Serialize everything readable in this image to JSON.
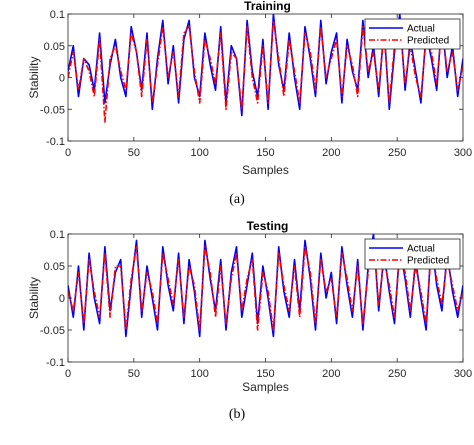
{
  "chart_data": [
    {
      "type": "line",
      "title": "Training",
      "xlabel": "Samples",
      "ylabel": "Stability",
      "xlim": [
        0,
        300
      ],
      "ylim": [
        -0.1,
        0.1
      ],
      "xticks": [
        "0",
        "50",
        "100",
        "150",
        "200",
        "250",
        "300"
      ],
      "yticks": [
        "0.1",
        "0.05",
        "0",
        "-0.05",
        "-0.1"
      ],
      "grid": false,
      "legend_position": "top-right",
      "caption": "(a)",
      "series": [
        {
          "name": "Actual",
          "color": "#0000ff",
          "style": "solid",
          "x": [
            0,
            4,
            8,
            12,
            16,
            20,
            24,
            28,
            32,
            36,
            40,
            44,
            48,
            52,
            56,
            60,
            64,
            68,
            72,
            76,
            80,
            84,
            88,
            92,
            96,
            100,
            104,
            108,
            112,
            116,
            120,
            124,
            128,
            132,
            136,
            140,
            144,
            148,
            152,
            156,
            160,
            164,
            168,
            172,
            176,
            180,
            184,
            188,
            192,
            196,
            200,
            204,
            208,
            212,
            216,
            220,
            224,
            228,
            232,
            236,
            240,
            244,
            248,
            252,
            256,
            260,
            264,
            268,
            272,
            276,
            280,
            284,
            288,
            292,
            296,
            300
          ],
          "y": [
            0.01,
            0.05,
            -0.03,
            0.03,
            0.02,
            -0.02,
            0.07,
            -0.04,
            0.02,
            0.06,
            0.0,
            -0.03,
            0.08,
            0.04,
            -0.02,
            0.07,
            -0.05,
            0.03,
            0.09,
            -0.01,
            0.05,
            -0.04,
            0.06,
            0.09,
            0.0,
            -0.03,
            0.07,
            0.02,
            -0.02,
            0.08,
            -0.04,
            0.05,
            0.03,
            -0.06,
            0.09,
            0.01,
            -0.03,
            0.06,
            -0.05,
            0.1,
            0.02,
            -0.02,
            0.07,
            0.0,
            -0.05,
            0.08,
            0.03,
            -0.03,
            0.09,
            -0.01,
            0.04,
            0.07,
            -0.04,
            0.06,
            0.01,
            -0.02,
            0.09,
            0.0,
            0.05,
            -0.03,
            0.08,
            -0.05,
            0.04,
            0.1,
            -0.02,
            0.06,
            0.01,
            -0.04,
            0.07,
            0.03,
            -0.02,
            0.09,
            0.0,
            0.05,
            -0.03,
            0.03
          ]
        },
        {
          "name": "Predicted",
          "color": "#ff0000",
          "style": "dash-dot",
          "x": [
            0,
            4,
            8,
            12,
            16,
            20,
            24,
            28,
            32,
            36,
            40,
            44,
            48,
            52,
            56,
            60,
            64,
            68,
            72,
            76,
            80,
            84,
            88,
            92,
            96,
            100,
            104,
            108,
            112,
            116,
            120,
            124,
            128,
            132,
            136,
            140,
            144,
            148,
            152,
            156,
            160,
            164,
            168,
            172,
            176,
            180,
            184,
            188,
            192,
            196,
            200,
            204,
            208,
            212,
            216,
            220,
            224,
            228,
            232,
            236,
            240,
            244,
            248,
            252,
            256,
            260,
            264,
            268,
            272,
            276,
            280,
            284,
            288,
            292,
            296,
            300
          ],
          "y": [
            0.0,
            0.04,
            -0.02,
            0.03,
            0.01,
            -0.03,
            0.06,
            -0.07,
            0.03,
            0.05,
            0.01,
            -0.02,
            0.07,
            0.04,
            -0.03,
            0.06,
            -0.04,
            0.02,
            0.08,
            0.0,
            0.04,
            -0.03,
            0.07,
            0.08,
            0.01,
            -0.04,
            0.06,
            0.03,
            -0.01,
            0.07,
            -0.05,
            0.04,
            0.03,
            -0.05,
            0.08,
            0.0,
            -0.04,
            0.05,
            -0.04,
            0.09,
            0.03,
            -0.03,
            0.06,
            0.01,
            -0.04,
            0.07,
            0.04,
            -0.02,
            0.08,
            0.0,
            0.03,
            0.06,
            -0.03,
            0.05,
            0.02,
            -0.03,
            0.08,
            0.01,
            0.04,
            -0.02,
            0.07,
            -0.04,
            0.05,
            0.09,
            -0.01,
            0.05,
            0.0,
            -0.03,
            0.06,
            0.04,
            -0.01,
            0.08,
            0.01,
            0.04,
            -0.02,
            0.02
          ]
        }
      ]
    },
    {
      "type": "line",
      "title": "Testing",
      "xlabel": "Samples",
      "ylabel": "Stability",
      "xlim": [
        0,
        300
      ],
      "ylim": [
        -0.1,
        0.1
      ],
      "xticks": [
        "0",
        "50",
        "100",
        "150",
        "200",
        "250",
        "300"
      ],
      "yticks": [
        "0.1",
        "0.05",
        "0",
        "-0.05",
        "-0.1"
      ],
      "grid": false,
      "legend_position": "top-right",
      "caption": "(b)",
      "series": [
        {
          "name": "Actual",
          "color": "#0000ff",
          "style": "solid",
          "x": [
            0,
            4,
            8,
            12,
            16,
            20,
            24,
            28,
            32,
            36,
            40,
            44,
            48,
            52,
            56,
            60,
            64,
            68,
            72,
            76,
            80,
            84,
            88,
            92,
            96,
            100,
            104,
            108,
            112,
            116,
            120,
            124,
            128,
            132,
            136,
            140,
            144,
            148,
            152,
            156,
            160,
            164,
            168,
            172,
            176,
            180,
            184,
            188,
            192,
            196,
            200,
            204,
            208,
            212,
            216,
            220,
            224,
            228,
            232,
            236,
            240,
            244,
            248,
            252,
            256,
            260,
            264,
            268,
            272,
            276,
            280,
            284,
            288,
            292,
            296,
            300
          ],
          "y": [
            0.02,
            -0.03,
            0.05,
            -0.05,
            0.07,
            0.0,
            -0.04,
            0.08,
            -0.02,
            0.04,
            0.06,
            -0.06,
            0.02,
            0.09,
            -0.03,
            0.05,
            0.0,
            -0.05,
            0.08,
            0.02,
            -0.02,
            0.07,
            -0.04,
            0.06,
            0.01,
            -0.06,
            0.09,
            0.03,
            -0.02,
            0.06,
            -0.05,
            0.04,
            0.08,
            -0.03,
            0.02,
            0.07,
            -0.04,
            0.05,
            0.0,
            -0.06,
            0.08,
            0.01,
            -0.03,
            0.06,
            -0.02,
            0.09,
            0.03,
            -0.05,
            0.07,
            0.0,
            0.04,
            -0.04,
            0.08,
            0.02,
            -0.03,
            0.06,
            -0.05,
            0.05,
            0.1,
            -0.02,
            0.07,
            0.01,
            -0.04,
            0.08,
            0.03,
            -0.03,
            0.06,
            0.0,
            -0.05,
            0.09,
            0.02,
            -0.02,
            0.07,
            0.01,
            -0.03,
            0.02
          ]
        },
        {
          "name": "Predicted",
          "color": "#ff0000",
          "style": "dash-dot",
          "x": [
            0,
            4,
            8,
            12,
            16,
            20,
            24,
            28,
            32,
            36,
            40,
            44,
            48,
            52,
            56,
            60,
            64,
            68,
            72,
            76,
            80,
            84,
            88,
            92,
            96,
            100,
            104,
            108,
            112,
            116,
            120,
            124,
            128,
            132,
            136,
            140,
            144,
            148,
            152,
            156,
            160,
            164,
            168,
            172,
            176,
            180,
            184,
            188,
            192,
            196,
            200,
            204,
            208,
            212,
            216,
            220,
            224,
            228,
            232,
            236,
            240,
            244,
            248,
            252,
            256,
            260,
            264,
            268,
            272,
            276,
            280,
            284,
            288,
            292,
            296,
            300
          ],
          "y": [
            0.01,
            -0.02,
            0.04,
            -0.04,
            0.06,
            0.01,
            -0.03,
            0.07,
            -0.03,
            0.05,
            0.05,
            -0.05,
            0.03,
            0.08,
            -0.02,
            0.04,
            0.01,
            -0.04,
            0.07,
            0.03,
            -0.01,
            0.06,
            -0.03,
            0.05,
            0.02,
            -0.05,
            0.08,
            0.04,
            -0.03,
            0.05,
            -0.04,
            0.03,
            0.07,
            -0.02,
            0.03,
            0.06,
            -0.05,
            0.04,
            0.01,
            -0.05,
            0.07,
            0.02,
            -0.02,
            0.05,
            -0.03,
            0.08,
            0.04,
            -0.04,
            0.06,
            0.01,
            0.03,
            -0.03,
            0.07,
            0.03,
            -0.02,
            0.05,
            -0.04,
            0.04,
            0.09,
            -0.01,
            0.06,
            0.02,
            -0.03,
            0.07,
            0.04,
            -0.02,
            0.05,
            0.01,
            -0.04,
            0.08,
            0.03,
            -0.01,
            0.06,
            0.02,
            -0.02,
            0.01
          ]
        }
      ]
    }
  ]
}
